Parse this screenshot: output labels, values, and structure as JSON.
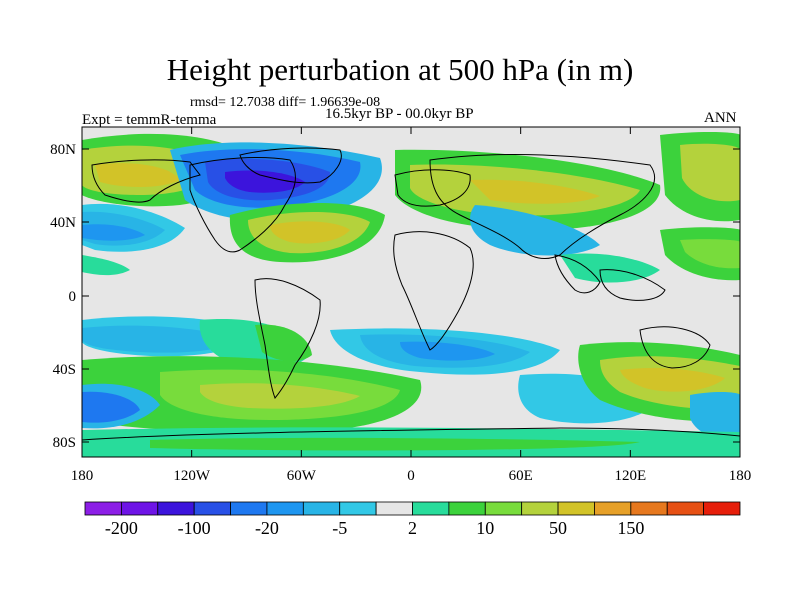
{
  "title": "Height perturbation at 500 hPa (in m)",
  "stats_text": "rmsd= 12.7038 diff= 1.96639e-08",
  "experiment": "Expt = temmR-temma",
  "period": "16.5kyr BP - 00.0kyr BP",
  "season": "ANN",
  "lat_ticks": [
    "80N",
    "40N",
    "0",
    "40S",
    "80S"
  ],
  "lon_ticks": [
    "180",
    "120W",
    "60W",
    "0",
    "60E",
    "120E",
    "180"
  ],
  "colorbar": {
    "colors": [
      "#8c1ee6",
      "#6e14e6",
      "#3c14dc",
      "#2850e6",
      "#1e78f0",
      "#1e96f0",
      "#28b4e6",
      "#32c8e6",
      "#e6e6e6",
      "#28dc9b",
      "#3cd23c",
      "#78dc3c",
      "#b4d23c",
      "#d2c328",
      "#e6a028",
      "#e6781e",
      "#e65014",
      "#e61e0a"
    ],
    "labels": [
      "-200",
      "-100",
      "-20",
      "-5",
      "2",
      "10",
      "50",
      "150"
    ]
  },
  "palette": {
    "c_n200": "#8c1ee6",
    "c_n150": "#6e14e6",
    "c_n100": "#3c14dc",
    "c_n50": "#2850e6",
    "c_n20": "#1e78f0",
    "c_n10": "#1e96f0",
    "c_n5": "#28b4e6",
    "c_n2": "#32c8e6",
    "neutral": "#e6e6e6",
    "c_2": "#28dc9b",
    "c_5": "#3cd23c",
    "c_10": "#78dc3c",
    "c_20": "#b4d23c",
    "c_50": "#d2c328",
    "c_100": "#e6a028"
  }
}
